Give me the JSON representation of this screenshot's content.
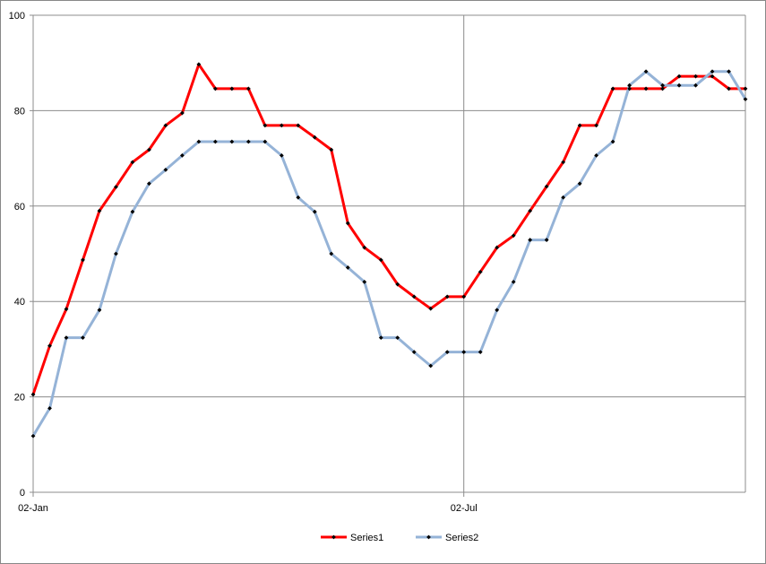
{
  "chart_data": {
    "type": "line",
    "title": "",
    "xlabel": "",
    "ylabel": "",
    "ylim": [
      0,
      100
    ],
    "yticks": [
      0,
      20,
      40,
      60,
      80,
      100
    ],
    "xtick_labels": [
      "02-Jan",
      "02-Jul"
    ],
    "xtick_indices": [
      0,
      26
    ],
    "grid": true,
    "legend_position": "bottom",
    "series": [
      {
        "name": "Series1",
        "color": "#ff0000",
        "values": [
          20.5,
          30.7,
          38.4,
          48.7,
          59,
          64,
          69.2,
          71.8,
          76.9,
          79.5,
          89.7,
          84.6,
          84.6,
          84.6,
          76.9,
          76.9,
          76.9,
          74.4,
          71.8,
          56.4,
          51.3,
          48.7,
          43.6,
          41,
          38.5,
          41,
          41,
          46.2,
          51.3,
          53.8,
          59,
          64.1,
          69.2,
          76.9,
          76.9,
          84.6,
          84.6,
          84.6,
          84.6,
          87.2,
          87.2,
          87.2,
          84.6,
          84.6
        ]
      },
      {
        "name": "Series2",
        "color": "#95b3d7",
        "values": [
          11.8,
          17.6,
          32.4,
          32.4,
          38.2,
          50,
          58.8,
          64.7,
          67.6,
          70.6,
          73.5,
          73.5,
          73.5,
          73.5,
          73.5,
          70.6,
          61.8,
          58.8,
          50,
          47.1,
          44.1,
          32.4,
          32.4,
          29.4,
          26.5,
          29.4,
          29.4,
          29.4,
          38.2,
          44.1,
          52.9,
          52.9,
          61.8,
          64.7,
          70.6,
          73.5,
          85.3,
          88.2,
          85.3,
          85.3,
          85.3,
          88.2,
          88.2,
          82.4
        ]
      }
    ]
  }
}
